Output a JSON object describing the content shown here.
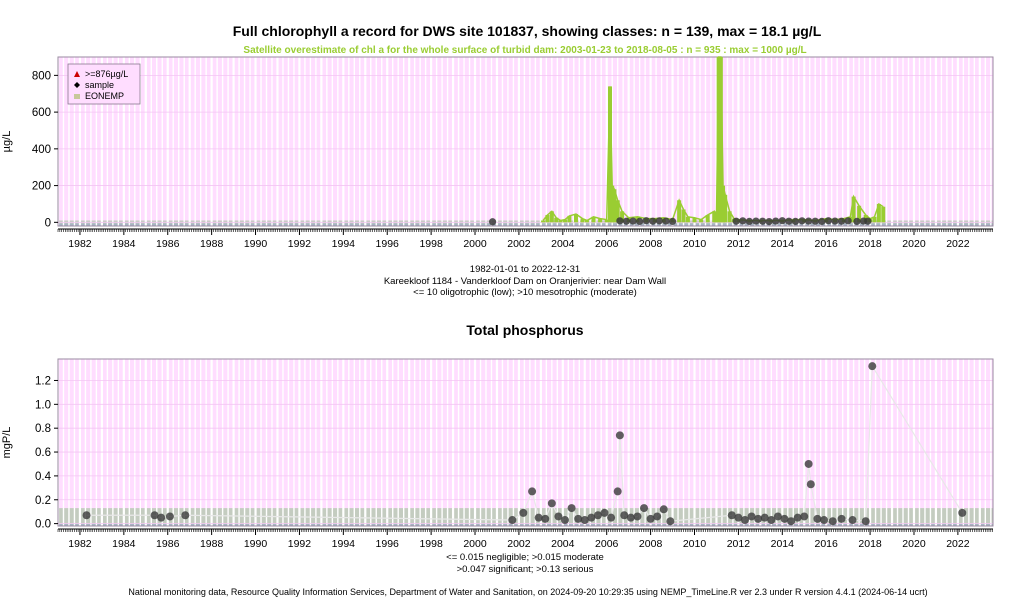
{
  "titles": {
    "chart1": "Full chlorophyll a record for DWS site 101837, showing classes: n = 139, max = 18.1 µg/L",
    "chart1_sub": "Satellite overestimate of chl a for the whole surface of turbid dam: 2003-01-23 to 2018-08-05 : n = 935 : max = 1000 µg/L",
    "chart2": "Total phosphorus"
  },
  "info": {
    "date_range": "1982-01-01 to 2022-12-31",
    "site": "Kareekloof 1184 - Vanderkloof Dam on Oranjerivier: near Dam Wall",
    "chl_classes": "<= 10 oligotrophic (low); >10 mesotrophic (moderate)",
    "tp_classes_1": "<= 0.015 negligible; >0.015 moderate",
    "tp_classes_2": ">0.047 significant; >0.13 serious"
  },
  "footer": "National monitoring data, Resource Quality Information Services, Department of Water and Sanitation, on 2024-09-20 10:29:35 using NEMP_TimeLine.R ver 2.3 under R version 4.4.1 (2024-06-14 ucrt)",
  "colors": {
    "background_band": "#ffddff",
    "gridline": "#ffffff",
    "satellite": "#9acd32",
    "sample": "#3a3a3a",
    "class_low": "#a8b4c4",
    "class_moderate": "#c4ccc0",
    "exceed_marker": "#cc0000",
    "eonemp": "#c8c89a"
  },
  "chart_data": [
    {
      "type": "area",
      "title": "Full chlorophyll a record for DWS site 101837, showing classes: n = 139, max = 18.1 µg/L",
      "subtitle": "Satellite overestimate of chl a for the whole surface of turbid dam: 2003-01-23 to 2018-08-05 : n = 935 : max = 1000 µg/L",
      "ylabel": "µg/L",
      "xlim": [
        1981,
        2023.6
      ],
      "ylim": [
        -20,
        900
      ],
      "x_ticks": [
        1982,
        1984,
        1986,
        1988,
        1990,
        1992,
        1994,
        1996,
        1998,
        2000,
        2002,
        2004,
        2006,
        2008,
        2010,
        2012,
        2014,
        2016,
        2018,
        2020,
        2022
      ],
      "y_ticks": [
        0,
        200,
        400,
        600,
        800
      ],
      "grid": true,
      "legend": {
        "position": "top-left",
        "entries": [
          {
            "label": ">=876µg/L",
            "marker": "triangle"
          },
          {
            "label": "sample",
            "marker": "diamond"
          },
          {
            "label": "EONEMP",
            "marker": "square"
          }
        ]
      },
      "class_thresholds": [
        10
      ],
      "series": [
        {
          "name": "satellite",
          "kind": "area",
          "x": [
            2003.1,
            2003.3,
            2003.5,
            2003.7,
            2003.9,
            2004.1,
            2004.3,
            2004.6,
            2004.9,
            2005.1,
            2005.4,
            2005.7,
            2006.0,
            2006.15,
            2006.25,
            2006.35,
            2006.5,
            2006.7,
            2007.0,
            2007.4,
            2007.8,
            2008.2,
            2008.6,
            2009.0,
            2009.3,
            2009.5,
            2009.7,
            2010.0,
            2010.3,
            2010.6,
            2010.9,
            2011.0,
            2011.1,
            2011.2,
            2011.3,
            2011.4,
            2011.6,
            2011.8,
            2012.0,
            2012.5,
            2013.0,
            2013.5,
            2014.0,
            2014.5,
            2015.0,
            2015.5,
            2016.0,
            2016.4,
            2016.8,
            2017.1,
            2017.25,
            2017.5,
            2017.8,
            2018.0,
            2018.2,
            2018.4,
            2018.6
          ],
          "y": [
            10,
            40,
            60,
            25,
            10,
            15,
            35,
            45,
            20,
            10,
            30,
            20,
            15,
            740,
            200,
            180,
            120,
            60,
            25,
            30,
            20,
            20,
            25,
            15,
            120,
            70,
            30,
            25,
            15,
            40,
            60,
            15,
            1000,
            920,
            200,
            150,
            60,
            20,
            15,
            10,
            10,
            10,
            10,
            15,
            15,
            10,
            20,
            15,
            20,
            30,
            140,
            90,
            40,
            20,
            30,
            100,
            85
          ]
        },
        {
          "name": "sample",
          "kind": "points",
          "x": [
            2000.8,
            2006.6,
            2006.9,
            2007.2,
            2007.5,
            2007.8,
            2008.1,
            2008.4,
            2008.7,
            2009.0,
            2011.9,
            2012.2,
            2012.5,
            2012.8,
            2013.1,
            2013.4,
            2013.7,
            2014.0,
            2014.3,
            2014.6,
            2014.9,
            2015.2,
            2015.5,
            2015.8,
            2016.1,
            2016.4,
            2016.7,
            2017.0,
            2017.4,
            2017.7,
            2017.9
          ],
          "y": [
            3,
            8,
            6,
            7,
            5,
            9,
            6,
            8,
            7,
            5,
            6,
            8,
            5,
            7,
            6,
            4,
            7,
            9,
            6,
            5,
            8,
            7,
            6,
            5,
            9,
            7,
            6,
            8,
            5,
            7,
            6
          ]
        }
      ]
    },
    {
      "type": "scatter",
      "title": "Total phosphorus",
      "ylabel": "mgP/L",
      "xlim": [
        1981,
        2023.6
      ],
      "ylim": [
        -0.02,
        1.38
      ],
      "x_ticks": [
        1982,
        1984,
        1986,
        1988,
        1990,
        1992,
        1994,
        1996,
        1998,
        2000,
        2002,
        2004,
        2006,
        2008,
        2010,
        2012,
        2014,
        2016,
        2018,
        2020,
        2022
      ],
      "y_ticks": [
        0.0,
        0.2,
        0.4,
        0.6,
        0.8,
        1.0,
        1.2
      ],
      "grid": true,
      "class_thresholds": [
        0.015,
        0.047,
        0.13
      ],
      "series": [
        {
          "name": "TP",
          "x": [
            1982.3,
            1985.4,
            1985.7,
            1986.1,
            1986.8,
            2001.7,
            2002.2,
            2002.6,
            2002.9,
            2003.2,
            2003.5,
            2003.8,
            2004.1,
            2004.4,
            2004.7,
            2005.0,
            2005.3,
            2005.6,
            2005.9,
            2006.2,
            2006.5,
            2006.6,
            2006.8,
            2007.1,
            2007.4,
            2007.7,
            2008.0,
            2008.3,
            2008.6,
            2008.9,
            2011.7,
            2012.0,
            2012.3,
            2012.6,
            2012.9,
            2013.2,
            2013.5,
            2013.8,
            2014.1,
            2014.4,
            2014.7,
            2015.0,
            2015.2,
            2015.3,
            2015.6,
            2015.9,
            2016.3,
            2016.7,
            2017.2,
            2017.8,
            2018.1,
            2022.2
          ],
          "y": [
            0.07,
            0.07,
            0.05,
            0.06,
            0.07,
            0.03,
            0.09,
            0.27,
            0.05,
            0.04,
            0.17,
            0.06,
            0.03,
            0.13,
            0.04,
            0.03,
            0.05,
            0.07,
            0.09,
            0.05,
            0.27,
            0.74,
            0.07,
            0.05,
            0.06,
            0.13,
            0.04,
            0.06,
            0.12,
            0.02,
            0.07,
            0.05,
            0.03,
            0.06,
            0.04,
            0.05,
            0.03,
            0.06,
            0.04,
            0.02,
            0.05,
            0.06,
            0.5,
            0.33,
            0.04,
            0.03,
            0.02,
            0.04,
            0.03,
            0.02,
            1.32,
            0.09
          ]
        }
      ]
    }
  ]
}
